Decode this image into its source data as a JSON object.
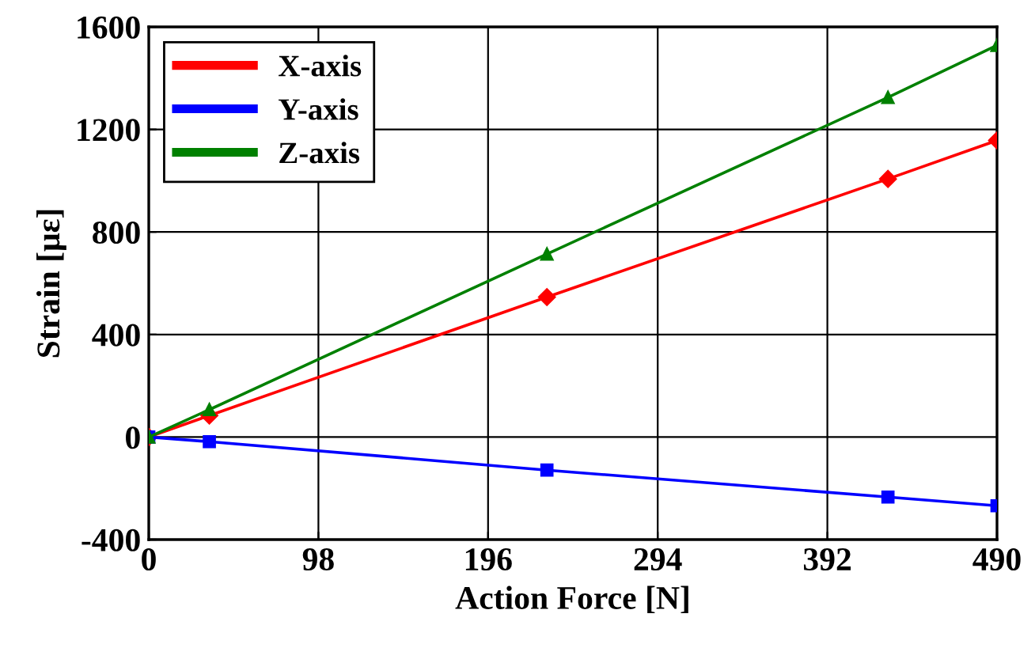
{
  "chart_data": {
    "type": "line",
    "xlabel": "Action Force [N]",
    "ylabel": "Strain [με]",
    "x": [
      0,
      35,
      230,
      427,
      490
    ],
    "series": [
      {
        "name": "X-axis",
        "color": "#ff0000",
        "marker": "diamond",
        "values": [
          0,
          84,
          546,
          1007,
          1157
        ]
      },
      {
        "name": "Y-axis",
        "color": "#0000ff",
        "marker": "square",
        "values": [
          0,
          -18,
          -129,
          -234,
          -268
        ]
      },
      {
        "name": "Z-axis",
        "color": "#008000",
        "marker": "triangle",
        "values": [
          0,
          107,
          714,
          1325,
          1528
        ]
      }
    ],
    "xlim": [
      0,
      490
    ],
    "xticks": [
      0,
      98,
      196,
      294,
      392,
      490
    ],
    "ylim": [
      -400,
      1600
    ],
    "yticks": [
      -400,
      0,
      400,
      800,
      1200,
      1600
    ],
    "grid": true,
    "legend": "top left"
  }
}
